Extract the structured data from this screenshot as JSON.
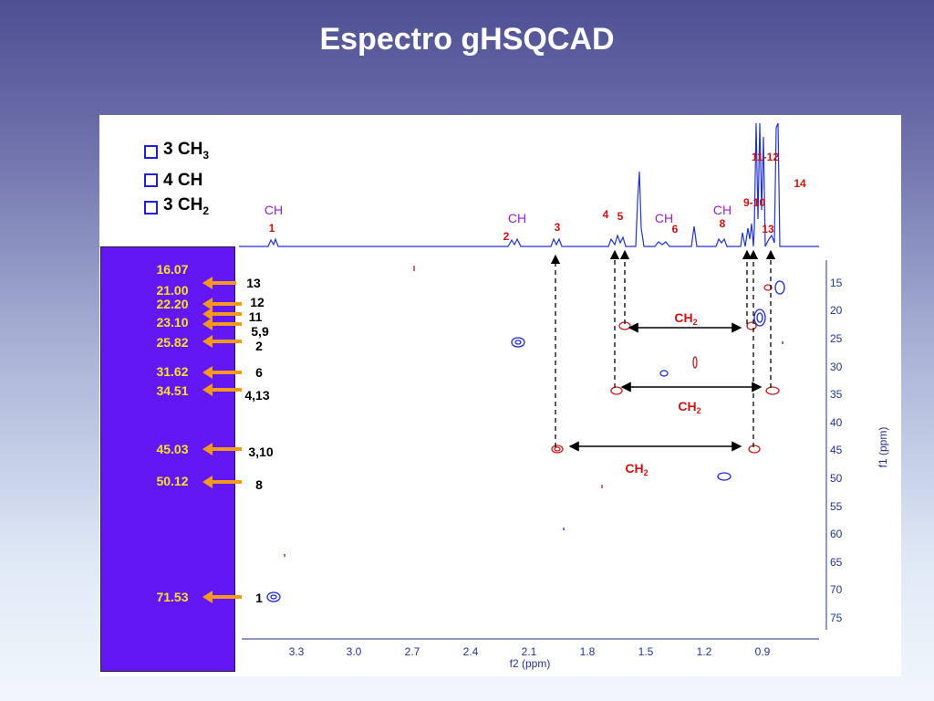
{
  "title": "Espectro gHSQCAD",
  "legend": [
    {
      "count": "3",
      "group": "CH",
      "sub": "3"
    },
    {
      "count": "4",
      "group": "CH",
      "sub": ""
    },
    {
      "count": "3",
      "group": "CH",
      "sub": "2"
    }
  ],
  "shifts": [
    {
      "value": "16.07",
      "label": "13"
    },
    {
      "value": "21.00",
      "label": "12"
    },
    {
      "value": "22.20",
      "label": "11"
    },
    {
      "value": "23.10",
      "label": "5,9"
    },
    {
      "value": "25.82",
      "label": "2"
    },
    {
      "value": "31.62",
      "label": "6"
    },
    {
      "value": "34.51",
      "label": "4,13"
    },
    {
      "value": "45.03",
      "label": "3,10"
    },
    {
      "value": "50.12",
      "label": "8"
    },
    {
      "value": "71.53",
      "label": "1"
    }
  ],
  "spectrum_labels": {
    "ch": [
      "CH",
      "CH",
      "CH",
      "CH"
    ],
    "peaks": [
      "1",
      "2",
      "3",
      "4",
      "5",
      "6",
      "8",
      "9-10",
      "11-12",
      "13",
      "14"
    ]
  },
  "ch2_labels": {
    "group": "CH",
    "sub": "2"
  },
  "axes": {
    "x_label": "f2 (ppm)",
    "y_label": "f1 (ppm)",
    "x_ticks": [
      "3.3",
      "3.0",
      "2.7",
      "2.4",
      "2.1",
      "1.8",
      "1.5",
      "1.2",
      "0.9"
    ],
    "y_ticks": [
      "15",
      "20",
      "25",
      "30",
      "35",
      "40",
      "45",
      "50",
      "55",
      "60",
      "65",
      "70",
      "75"
    ]
  },
  "colors": {
    "arrow": "#f39a1d",
    "shift_text": "#f7e224",
    "contour_red": "#c41d1d",
    "contour_blue": "#1d2cc4",
    "ch_label": "#9922cc",
    "peak_label": "#cc1111"
  }
}
